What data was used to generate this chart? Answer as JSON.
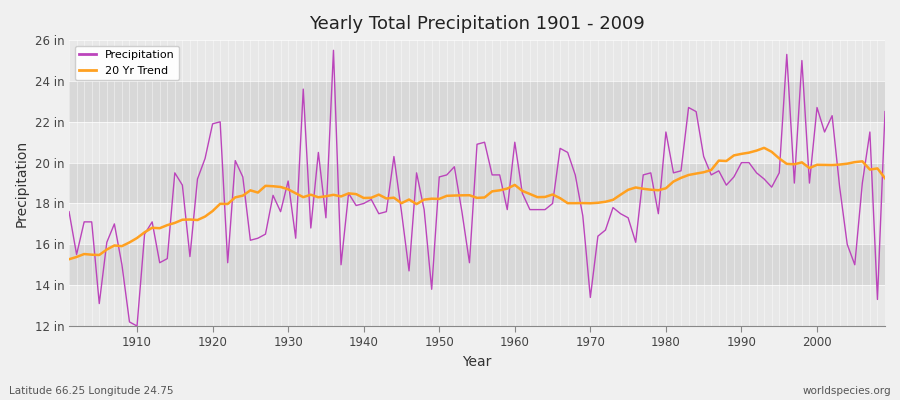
{
  "title": "Yearly Total Precipitation 1901 - 2009",
  "xlabel": "Year",
  "ylabel": "Precipitation",
  "lat_lon_label": "Latitude 66.25 Longitude 24.75",
  "watermark": "worldspecies.org",
  "ylim": [
    12,
    26
  ],
  "yticks": [
    12,
    14,
    16,
    18,
    20,
    22,
    24,
    26
  ],
  "ytick_labels": [
    "12 in",
    "14 in",
    "16 in",
    "18 in",
    "20 in",
    "22 in",
    "24 in",
    "26 in"
  ],
  "xlim": [
    1901,
    2009
  ],
  "xticks": [
    1910,
    1920,
    1930,
    1940,
    1950,
    1960,
    1970,
    1980,
    1990,
    2000
  ],
  "precip_color": "#BB44BB",
  "trend_color": "#FFA020",
  "bg_color": "#F0F0F0",
  "plot_bg_color": "#E0E0E0",
  "band_color_light": "#E8E8E8",
  "band_color_dark": "#D8D8D8",
  "legend_labels": [
    "Precipitation",
    "20 Yr Trend"
  ],
  "years": [
    1901,
    1902,
    1903,
    1904,
    1905,
    1906,
    1907,
    1908,
    1909,
    1910,
    1911,
    1912,
    1913,
    1914,
    1915,
    1916,
    1917,
    1918,
    1919,
    1920,
    1921,
    1922,
    1923,
    1924,
    1925,
    1926,
    1927,
    1928,
    1929,
    1930,
    1931,
    1932,
    1933,
    1934,
    1935,
    1936,
    1937,
    1938,
    1939,
    1940,
    1941,
    1942,
    1943,
    1944,
    1945,
    1946,
    1947,
    1948,
    1949,
    1950,
    1951,
    1952,
    1953,
    1954,
    1955,
    1956,
    1957,
    1958,
    1959,
    1960,
    1961,
    1962,
    1963,
    1964,
    1965,
    1966,
    1967,
    1968,
    1969,
    1970,
    1971,
    1972,
    1973,
    1974,
    1975,
    1976,
    1977,
    1978,
    1979,
    1980,
    1981,
    1982,
    1983,
    1984,
    1985,
    1986,
    1987,
    1988,
    1989,
    1990,
    1991,
    1992,
    1993,
    1994,
    1995,
    1996,
    1997,
    1998,
    1999,
    2000,
    2001,
    2002,
    2003,
    2004,
    2005,
    2006,
    2007,
    2008,
    2009
  ],
  "precipitation": [
    17.6,
    15.5,
    17.1,
    17.1,
    13.1,
    16.1,
    17.0,
    15.0,
    12.2,
    12.0,
    16.5,
    17.1,
    15.1,
    15.3,
    19.5,
    18.9,
    15.4,
    19.2,
    20.2,
    21.9,
    22.0,
    15.1,
    20.1,
    19.3,
    16.2,
    16.3,
    16.5,
    18.4,
    17.6,
    19.1,
    16.3,
    23.6,
    16.8,
    20.5,
    17.3,
    25.5,
    15.0,
    18.5,
    17.9,
    18.0,
    18.2,
    17.5,
    17.6,
    20.3,
    17.6,
    14.7,
    19.5,
    17.7,
    13.8,
    19.3,
    19.4,
    19.8,
    17.6,
    15.1,
    20.9,
    21.0,
    19.4,
    19.4,
    17.7,
    21.0,
    18.5,
    17.7,
    17.7,
    17.7,
    18.0,
    20.7,
    20.5,
    19.4,
    17.4,
    13.4,
    16.4,
    16.7,
    17.8,
    17.5,
    17.3,
    16.1,
    19.4,
    19.5,
    17.5,
    21.5,
    19.5,
    19.6,
    22.7,
    22.5,
    20.3,
    19.4,
    19.6,
    18.9,
    19.3,
    20.0,
    20.0,
    19.5,
    19.2,
    18.8,
    19.5,
    25.3,
    19.0,
    25.0,
    19.0,
    22.7,
    21.5,
    22.3,
    18.8,
    16.0,
    15.0,
    19.0,
    21.5,
    13.3,
    22.5
  ]
}
